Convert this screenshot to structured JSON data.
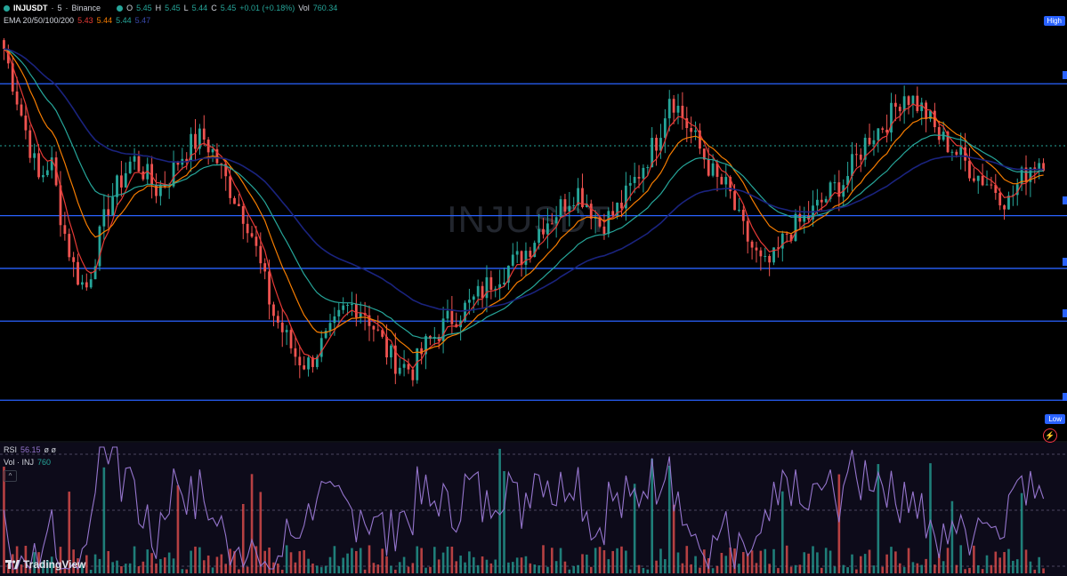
{
  "header": {
    "symbol": "INJUSDT",
    "interval": "5",
    "exchange": "Binance",
    "title_sep": "·",
    "ohlc": {
      "o_label": "O",
      "o": "5.45",
      "h_label": "H",
      "h": "5.45",
      "l_label": "L",
      "l": "5.44",
      "c_label": "C",
      "c": "5.45",
      "change": "+0.01 (+0.18%)",
      "vol_label": "Vol",
      "vol": "760.34"
    }
  },
  "ema_legend": {
    "label": "EMA 20/50/100/200",
    "v1": "5.43",
    "v2": "5.44",
    "v3": "5.44",
    "v4": "5.47"
  },
  "rsi_legend": {
    "label": "RSI",
    "value": "56.15",
    "extra": "ø ø"
  },
  "vol_legend": {
    "label": "Vol · INJ",
    "value": "760"
  },
  "badges": {
    "high": "High",
    "low": "Low"
  },
  "watermark": "INJUSDT",
  "brand": "TradingView",
  "collapse_btn": "^",
  "colors": {
    "up": "#26a69a",
    "down": "#ef5350",
    "level": "#2962ff",
    "ema20": "#e53935",
    "ema50": "#f57c00",
    "ema100": "#26a69a",
    "ema200": "#1a237e",
    "rsi": "#9575cd"
  },
  "chart_data": {
    "type": "candlestick",
    "symbol": "INJUSDT",
    "timeframe": "5",
    "candles_close_path": [
      5.7,
      5.6,
      5.5,
      5.4,
      5.45,
      5.3,
      5.2,
      5.15,
      5.25,
      5.35,
      5.4,
      5.45,
      5.42,
      5.38,
      5.4,
      5.45,
      5.48,
      5.5,
      5.46,
      5.4,
      5.35,
      5.3,
      5.2,
      5.1,
      5.05,
      5.0,
      4.98,
      5.02,
      5.05,
      5.1,
      5.12,
      5.1,
      5.05,
      5.0,
      4.98,
      4.97,
      5.02,
      5.05,
      5.08,
      5.1,
      5.12,
      5.15,
      5.18,
      5.2,
      5.22,
      5.25,
      5.3,
      5.32,
      5.35,
      5.38,
      5.35,
      5.3,
      5.32,
      5.35,
      5.4,
      5.45,
      5.5,
      5.6,
      5.55,
      5.5,
      5.45,
      5.4,
      5.38,
      5.3,
      5.25,
      5.2,
      5.22,
      5.28,
      5.3,
      5.32,
      5.35,
      5.38,
      5.4,
      5.45,
      5.5,
      5.52,
      5.55,
      5.6,
      5.58,
      5.55,
      5.5,
      5.48,
      5.45,
      5.42,
      5.4,
      5.38,
      5.35,
      5.4,
      5.44,
      5.45
    ],
    "horizontal_levels": [
      5.62,
      5.32,
      5.2,
      5.08,
      4.9
    ],
    "ema_periods": [
      20,
      50,
      100,
      200
    ],
    "ema_last": [
      5.43,
      5.44,
      5.44,
      5.47
    ],
    "rsi_last": 56.15,
    "volume_last": 760
  }
}
